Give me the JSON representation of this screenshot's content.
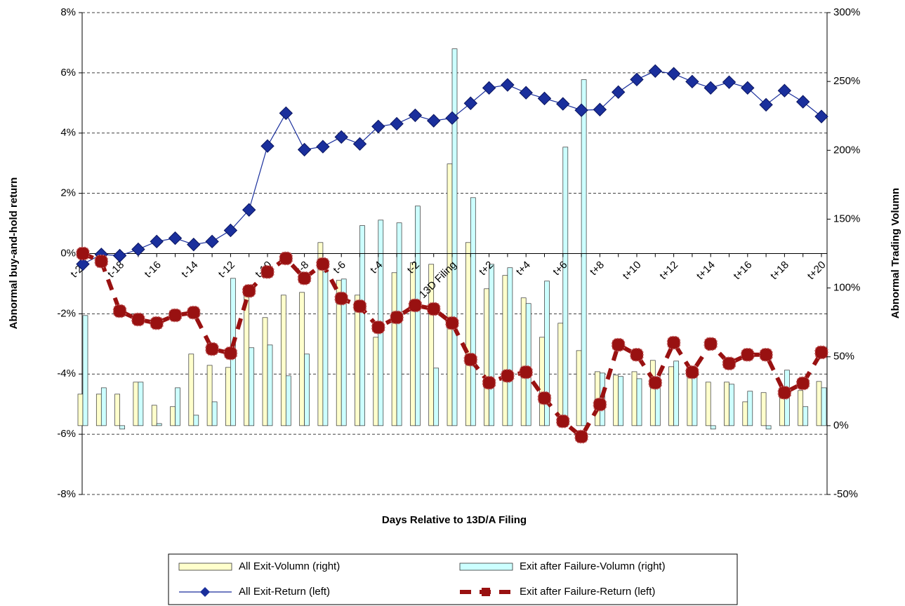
{
  "chart_data": {
    "type": "combo",
    "x_label": "Days Relative to 13D/A Filing",
    "y_label": "Abnormal buy-and-hold return",
    "y2_label": "Abnormal Trading Volumn",
    "categories": [
      "t-20",
      null,
      "t-18",
      null,
      "t-16",
      null,
      "t-14",
      null,
      "t-12",
      null,
      "t-10",
      null,
      "t-8",
      null,
      "t-6",
      null,
      "t-4",
      null,
      "t-2",
      null,
      "13D Filing",
      null,
      "t+2",
      null,
      "t+4",
      null,
      "t+6",
      null,
      "t+8",
      null,
      "t+10",
      null,
      "t+12",
      null,
      "t+14",
      null,
      "t+16",
      null,
      "t+18",
      null,
      "t+20"
    ],
    "ylim": [
      -8,
      8
    ],
    "yticks": [
      {
        "value": -8,
        "label": "-8%"
      },
      {
        "value": -6,
        "label": "-6%"
      },
      {
        "value": -4,
        "label": "-4%"
      },
      {
        "value": -2,
        "label": "-2%"
      },
      {
        "value": 0,
        "label": "0%"
      },
      {
        "value": 2,
        "label": "2%"
      },
      {
        "value": 4,
        "label": "4%"
      },
      {
        "value": 6,
        "label": "6%"
      },
      {
        "value": 8,
        "label": "8%"
      }
    ],
    "y2lim": [
      -50,
      300
    ],
    "y2ticks": [
      {
        "value": -50,
        "label": "-50%"
      },
      {
        "value": 0,
        "label": "0%"
      },
      {
        "value": 50,
        "label": "50%"
      },
      {
        "value": 100,
        "label": "100%"
      },
      {
        "value": 150,
        "label": "150%"
      },
      {
        "value": 200,
        "label": "200%"
      },
      {
        "value": 250,
        "label": "250%"
      },
      {
        "value": 300,
        "label": "300%"
      }
    ],
    "grid": true,
    "legend": "bottom",
    "series": [
      {
        "name": "All Exit-Volumn (right)",
        "type": "bar",
        "axis": "y2",
        "color": "#ffffcc",
        "values": [
          22.9,
          22.9,
          22.9,
          31.6,
          14.8,
          13.8,
          52.0,
          43.8,
          42.3,
          94.8,
          78.5,
          94.8,
          96.8,
          133.0,
          105.5,
          94.8,
          64.2,
          111.1,
          118.3,
          117.2,
          190.1,
          133.0,
          99.4,
          109.1,
          92.8,
          64.2,
          74.4,
          54.5,
          39.2,
          36.7,
          39.2,
          47.4,
          42.8,
          41.8,
          31.6,
          31.6,
          17.3,
          24.0,
          21.4,
          25.5,
          32.1
        ]
      },
      {
        "name": "Exit after Failure-Volumn (right)",
        "type": "bar",
        "axis": "y2",
        "color": "#ccffff",
        "values": [
          80.0,
          27.5,
          -2.5,
          31.6,
          1.5,
          27.5,
          7.6,
          17.3,
          107.0,
          56.6,
          58.6,
          36.2,
          52.0,
          111.6,
          106.5,
          145.3,
          149.3,
          147.3,
          159.5,
          41.8,
          273.7,
          165.6,
          117.2,
          114.7,
          88.7,
          105.0,
          202.3,
          251.3,
          38.2,
          35.7,
          34.1,
          35.2,
          46.9,
          41.8,
          -2.5,
          30.1,
          25.0,
          -2.5,
          40.3,
          13.8,
          27.5
        ]
      },
      {
        "name": "All Exit-Return (left)",
        "type": "line",
        "marker": "diamond",
        "color": "#1a2f9c",
        "values": [
          -0.35,
          -0.03,
          -0.07,
          0.14,
          0.4,
          0.51,
          0.3,
          0.4,
          0.77,
          1.45,
          3.57,
          4.66,
          3.45,
          3.55,
          3.87,
          3.64,
          4.22,
          4.31,
          4.59,
          4.41,
          4.5,
          4.99,
          5.5,
          5.6,
          5.34,
          5.15,
          4.97,
          4.76,
          4.78,
          5.36,
          5.78,
          6.06,
          5.97,
          5.71,
          5.5,
          5.69,
          5.5,
          4.94,
          5.41,
          5.04,
          4.55
        ]
      },
      {
        "name": "Exit after Failure-Return (left)",
        "type": "line",
        "marker": "square",
        "dashed": true,
        "color": "#991111",
        "values": [
          0.0,
          -0.26,
          -1.91,
          -2.19,
          -2.31,
          -2.05,
          -1.96,
          -3.17,
          -3.31,
          -1.24,
          -0.61,
          -0.16,
          -0.82,
          -0.35,
          -1.49,
          -1.75,
          -2.45,
          -2.12,
          -1.72,
          -1.84,
          -2.31,
          -3.52,
          -4.29,
          -4.06,
          -3.94,
          -4.8,
          -5.57,
          -6.08,
          -5.01,
          -3.03,
          -3.36,
          -4.29,
          -2.96,
          -3.94,
          -3.0,
          -3.65,
          -3.36,
          -3.36,
          -4.62,
          -4.31,
          -3.28
        ]
      }
    ]
  }
}
